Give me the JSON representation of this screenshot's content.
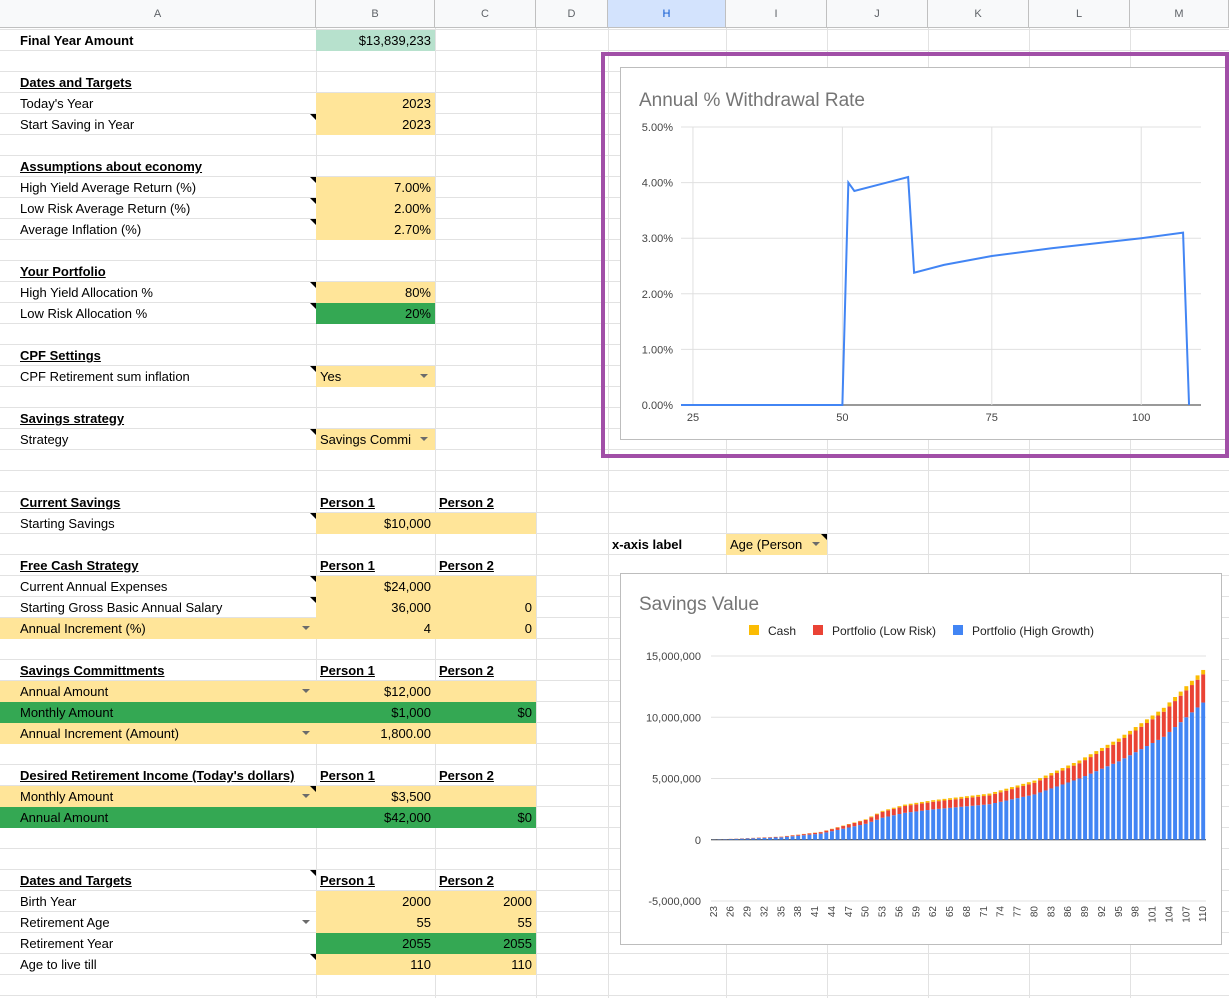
{
  "columns": [
    "A",
    "B",
    "C",
    "D",
    "H",
    "I",
    "J",
    "K",
    "L",
    "M"
  ],
  "selected_column": "H",
  "colors": {
    "yellow": "#ffe599",
    "green": "#34a853",
    "mint": "#b7e1cd",
    "chart_line": "#4285f4",
    "cash": "#fbbc04",
    "low_risk": "#ea4335",
    "high_growth": "#4285f4",
    "selection_border": "#a14fa7"
  },
  "sheet": {
    "final": {
      "label": "Final Year Amount",
      "value": "$13,839,233"
    },
    "dates1": {
      "title": "Dates and Targets",
      "todays_year_label": "Today's Year",
      "todays_year": "2023",
      "start_label": "Start Saving in Year",
      "start_year": "2023"
    },
    "economy": {
      "title": "Assumptions about economy",
      "high_label": "High Yield Average Return (%)",
      "high": "7.00%",
      "low_label": "Low Risk Average Return (%)",
      "low": "2.00%",
      "infl_label": "Average Inflation (%)",
      "infl": "2.70%"
    },
    "portfolio": {
      "title": "Your Portfolio",
      "high_label": "High Yield Allocation %",
      "high": "80%",
      "low_label": "Low Risk Allocation %",
      "low": "20%"
    },
    "cpf": {
      "title": "CPF Settings",
      "label": "CPF Retirement sum inflation",
      "value": "Yes"
    },
    "strategy": {
      "title": "Savings strategy",
      "label": "Strategy",
      "value": "Savings Commi"
    },
    "current": {
      "title": "Current Savings",
      "p1": "Person 1",
      "p2": "Person 2",
      "label": "Starting Savings",
      "value": "$10,000"
    },
    "freecash": {
      "title": "Free Cash Strategy",
      "p1": "Person 1",
      "p2": "Person 2",
      "exp_label": "Current Annual Expenses",
      "exp": "$24,000",
      "salary_label": "Starting Gross Basic Annual Salary",
      "salary1": "36,000",
      "salary2": "0",
      "inc_label": "Annual Increment (%)",
      "inc1": "4",
      "inc2": "0"
    },
    "commit": {
      "title": "Savings Committments",
      "p1": "Person 1",
      "p2": "Person 2",
      "annual_label": "Annual Amount",
      "annual1": "$12,000",
      "monthly_label": "Monthly Amount",
      "monthly1": "$1,000",
      "monthly2": "$0",
      "inc_label": "Annual Increment (Amount)",
      "inc1": "1,800.00"
    },
    "income": {
      "title": "Desired Retirement Income (Today's dollars)",
      "p1": "Person 1",
      "p2": "Person 2",
      "monthly_label": "Monthly Amount",
      "monthly1": "$3,500",
      "annual_label": "Annual Amount",
      "annual1": "$42,000",
      "annual2": "$0"
    },
    "dates2": {
      "title": "Dates and Targets",
      "p1": "Person 1",
      "p2": "Person 2",
      "birth_label": "Birth Year",
      "birth1": "2000",
      "birth2": "2000",
      "ret_age_label": "Retirement Age",
      "ret_age1": "55",
      "ret_age2": "55",
      "ret_year_label": "Retirement Year",
      "ret_year1": "2055",
      "ret_year2": "2055",
      "live_label": "Age to live till",
      "live1": "110",
      "live2": "110"
    },
    "xaxis": {
      "label": "x-axis label",
      "value": "Age (Person"
    }
  },
  "chart_data": [
    {
      "type": "line",
      "title": "Annual % Withdrawal Rate",
      "xlim": [
        23,
        110
      ],
      "ylim": [
        0,
        5
      ],
      "x_ticks": [
        25,
        50,
        75,
        100
      ],
      "y_ticks": [
        "0.00%",
        "1.00%",
        "2.00%",
        "3.00%",
        "4.00%",
        "5.00%"
      ],
      "gridlines": true,
      "series": [
        {
          "x": [
            23,
            50,
            51,
            52,
            61,
            62,
            67,
            75,
            85,
            100,
            107,
            108
          ],
          "y": [
            0,
            0,
            4.0,
            3.85,
            4.1,
            2.38,
            2.52,
            2.68,
            2.82,
            3.0,
            3.1,
            0
          ]
        }
      ]
    },
    {
      "type": "bar",
      "stacked": true,
      "title": "Savings Value",
      "legend_position": "top",
      "series_names": [
        "Cash",
        "Portfolio (Low Risk)",
        "Portfolio (High Growth)"
      ],
      "ylim": [
        -5000000,
        15000000
      ],
      "y_ticks": [
        "-5,000,000",
        "0",
        "5,000,000",
        "10,000,000",
        "15,000,000"
      ],
      "x_ticks": [
        "23",
        "26",
        "29",
        "32",
        "35",
        "38",
        "41",
        "44",
        "47",
        "50",
        "53",
        "56",
        "59",
        "62",
        "65",
        "68",
        "71",
        "74",
        "77",
        "80",
        "83",
        "86",
        "89",
        "92",
        "95",
        "98",
        "101",
        "104",
        "107",
        "110"
      ],
      "x": [
        23,
        110
      ],
      "note_units": "currency",
      "high_growth": [
        12000,
        200000,
        500000,
        1300000,
        1800000,
        2200000,
        2480000,
        2900000,
        3700000,
        5000000,
        6400000,
        8400000,
        11200000
      ],
      "low_risk": [
        0,
        50000,
        120000,
        320000,
        480000,
        560000,
        620000,
        720000,
        950000,
        1250000,
        1600000,
        2050000,
        2300000
      ],
      "cash": [
        0,
        10000,
        20000,
        50000,
        80000,
        110000,
        130000,
        150000,
        180000,
        220000,
        260000,
        320000,
        360000
      ],
      "anchor_ages": [
        23,
        35,
        42,
        50,
        53,
        57,
        62,
        72,
        80,
        88,
        95,
        103,
        110
      ]
    }
  ]
}
